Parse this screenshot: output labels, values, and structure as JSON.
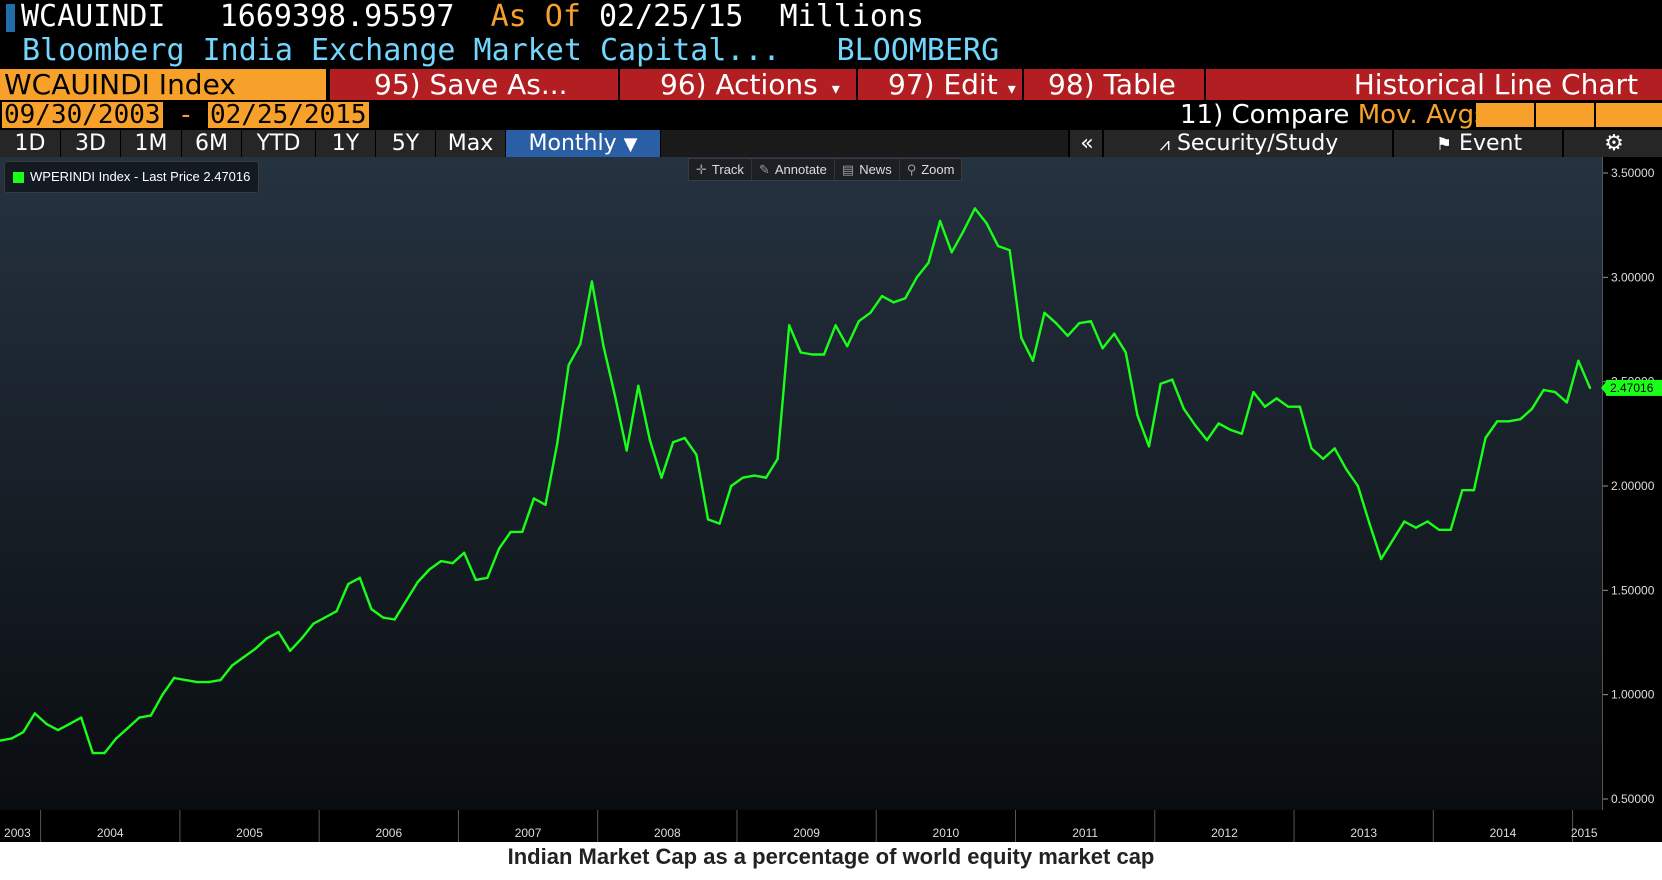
{
  "header": {
    "ticker": "WCAUINDI",
    "value": "1669398.95597",
    "as_of_label": "As Of",
    "as_of_date": "02/25/15",
    "units": "Millions",
    "description": "Bloomberg India Exchange Market Capital...",
    "source": "BLOOMBERG"
  },
  "menu": {
    "index_label": "WCAUINDI Index",
    "save_as": "95) Save As...",
    "actions": "96) Actions",
    "edit": "97) Edit",
    "table": "98) Table",
    "chart_type": "Historical Line Chart"
  },
  "range": {
    "start": "09/30/2003",
    "separator": "-",
    "end": "02/25/2015",
    "compare_label": "11) Compare",
    "mov_avgs": "Mov. Avgs"
  },
  "timeframes": [
    "1D",
    "3D",
    "1M",
    "6M",
    "YTD",
    "1Y",
    "5Y",
    "Max"
  ],
  "frequency": "Monthly",
  "right_toolbar": {
    "collapse": "«",
    "security_study": "Security/Study",
    "event": "Event"
  },
  "tools": [
    "Track",
    "Annotate",
    "News",
    "Zoom"
  ],
  "legend": {
    "label": "WPERINDI Index - Last Price 2.47016",
    "color": "#1aff1a"
  },
  "caption": "Indian Market Cap as a percentage of world equity market cap",
  "colors": {
    "line": "#1aff1a",
    "orange": "#f7a12a",
    "red": "#b21e22",
    "active_tab": "#2a5ea5"
  },
  "chart_data": {
    "type": "line",
    "series": [
      {
        "name": "WPERINDI Index",
        "x": [
          "2003-09",
          "2003-10",
          "2003-11",
          "2003-12",
          "2004-01",
          "2004-02",
          "2004-03",
          "2004-04",
          "2004-05",
          "2004-06",
          "2004-07",
          "2004-08",
          "2004-09",
          "2004-10",
          "2004-11",
          "2004-12",
          "2005-01",
          "2005-02",
          "2005-03",
          "2005-04",
          "2005-05",
          "2005-06",
          "2005-07",
          "2005-08",
          "2005-09",
          "2005-10",
          "2005-11",
          "2005-12",
          "2006-01",
          "2006-02",
          "2006-03",
          "2006-04",
          "2006-05",
          "2006-06",
          "2006-07",
          "2006-08",
          "2006-09",
          "2006-10",
          "2006-11",
          "2006-12",
          "2007-01",
          "2007-02",
          "2007-03",
          "2007-04",
          "2007-05",
          "2007-06",
          "2007-07",
          "2007-08",
          "2007-09",
          "2007-10",
          "2007-11",
          "2007-12",
          "2008-01",
          "2008-02",
          "2008-03",
          "2008-04",
          "2008-05",
          "2008-06",
          "2008-07",
          "2008-08",
          "2008-09",
          "2008-10",
          "2008-11",
          "2008-12",
          "2009-01",
          "2009-02",
          "2009-03",
          "2009-04",
          "2009-05",
          "2009-06",
          "2009-07",
          "2009-08",
          "2009-09",
          "2009-10",
          "2009-11",
          "2009-12",
          "2010-01",
          "2010-02",
          "2010-03",
          "2010-04",
          "2010-05",
          "2010-06",
          "2010-07",
          "2010-08",
          "2010-09",
          "2010-10",
          "2010-11",
          "2010-12",
          "2011-01",
          "2011-02",
          "2011-03",
          "2011-04",
          "2011-05",
          "2011-06",
          "2011-07",
          "2011-08",
          "2011-09",
          "2011-10",
          "2011-11",
          "2011-12",
          "2012-01",
          "2012-02",
          "2012-03",
          "2012-04",
          "2012-05",
          "2012-06",
          "2012-07",
          "2012-08",
          "2012-09",
          "2012-10",
          "2012-11",
          "2012-12",
          "2013-01",
          "2013-02",
          "2013-03",
          "2013-04",
          "2013-05",
          "2013-06",
          "2013-07",
          "2013-08",
          "2013-09",
          "2013-10",
          "2013-11",
          "2013-12",
          "2014-01",
          "2014-02",
          "2014-03",
          "2014-04",
          "2014-05",
          "2014-06",
          "2014-07",
          "2014-08",
          "2014-09",
          "2014-10",
          "2014-11",
          "2014-12",
          "2015-01",
          "2015-02"
        ],
        "values": [
          0.78,
          0.79,
          0.82,
          0.91,
          0.86,
          0.83,
          0.86,
          0.89,
          0.72,
          0.72,
          0.79,
          0.84,
          0.89,
          0.9,
          1.0,
          1.08,
          1.07,
          1.06,
          1.06,
          1.07,
          1.14,
          1.18,
          1.22,
          1.27,
          1.3,
          1.21,
          1.27,
          1.34,
          1.37,
          1.4,
          1.53,
          1.56,
          1.41,
          1.37,
          1.36,
          1.45,
          1.54,
          1.6,
          1.64,
          1.63,
          1.68,
          1.55,
          1.56,
          1.7,
          1.78,
          1.78,
          1.94,
          1.91,
          2.2,
          2.58,
          2.68,
          2.98,
          2.67,
          2.43,
          2.17,
          2.48,
          2.22,
          2.04,
          2.21,
          2.23,
          2.15,
          1.84,
          1.82,
          2.0,
          2.04,
          2.05,
          2.04,
          2.13,
          2.77,
          2.64,
          2.63,
          2.63,
          2.77,
          2.67,
          2.79,
          2.83,
          2.91,
          2.88,
          2.9,
          3.0,
          3.07,
          3.27,
          3.12,
          3.22,
          3.33,
          3.26,
          3.15,
          3.13,
          2.71,
          2.6,
          2.83,
          2.78,
          2.72,
          2.78,
          2.79,
          2.66,
          2.73,
          2.64,
          2.34,
          2.19,
          2.49,
          2.51,
          2.37,
          2.29,
          2.22,
          2.3,
          2.27,
          2.25,
          2.45,
          2.38,
          2.42,
          2.38,
          2.38,
          2.18,
          2.13,
          2.18,
          2.08,
          2.0,
          1.82,
          1.65,
          1.74,
          1.83,
          1.8,
          1.83,
          1.79,
          1.79,
          1.98,
          1.98,
          2.23,
          2.31,
          2.31,
          2.32,
          2.37,
          2.46,
          2.45,
          2.4,
          2.6,
          2.47
        ]
      }
    ],
    "x_tick_labels": [
      "2003",
      "2004",
      "2005",
      "2006",
      "2007",
      "2008",
      "2009",
      "2010",
      "2011",
      "2012",
      "2013",
      "2014",
      "2015"
    ],
    "y_tick_labels": [
      "0.50000",
      "1.00000",
      "1.50000",
      "2.00000",
      "2.50000",
      "3.00000",
      "3.50000"
    ],
    "ylim": [
      0.5,
      3.5
    ],
    "last_price_label": "2.47016",
    "legend_position": "top-left",
    "grid": false
  }
}
